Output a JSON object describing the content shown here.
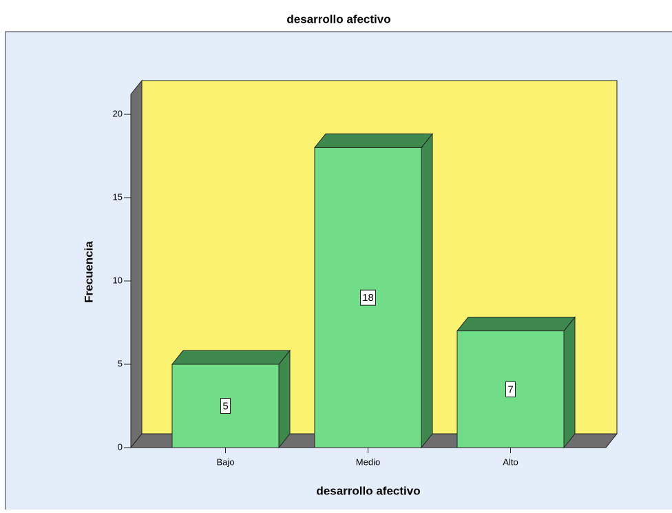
{
  "chart_data": {
    "type": "bar",
    "title": "desarrollo afectivo",
    "x_label": "desarrollo afectivo",
    "y_label": "Frecuencia",
    "categories": [
      "Bajo",
      "Medio",
      "Alto"
    ],
    "values": [
      5,
      18,
      7
    ],
    "color": "#72dd88",
    "ylim": [
      0,
      21.2
    ],
    "yticks": [
      0,
      5,
      10,
      15,
      20
    ]
  }
}
